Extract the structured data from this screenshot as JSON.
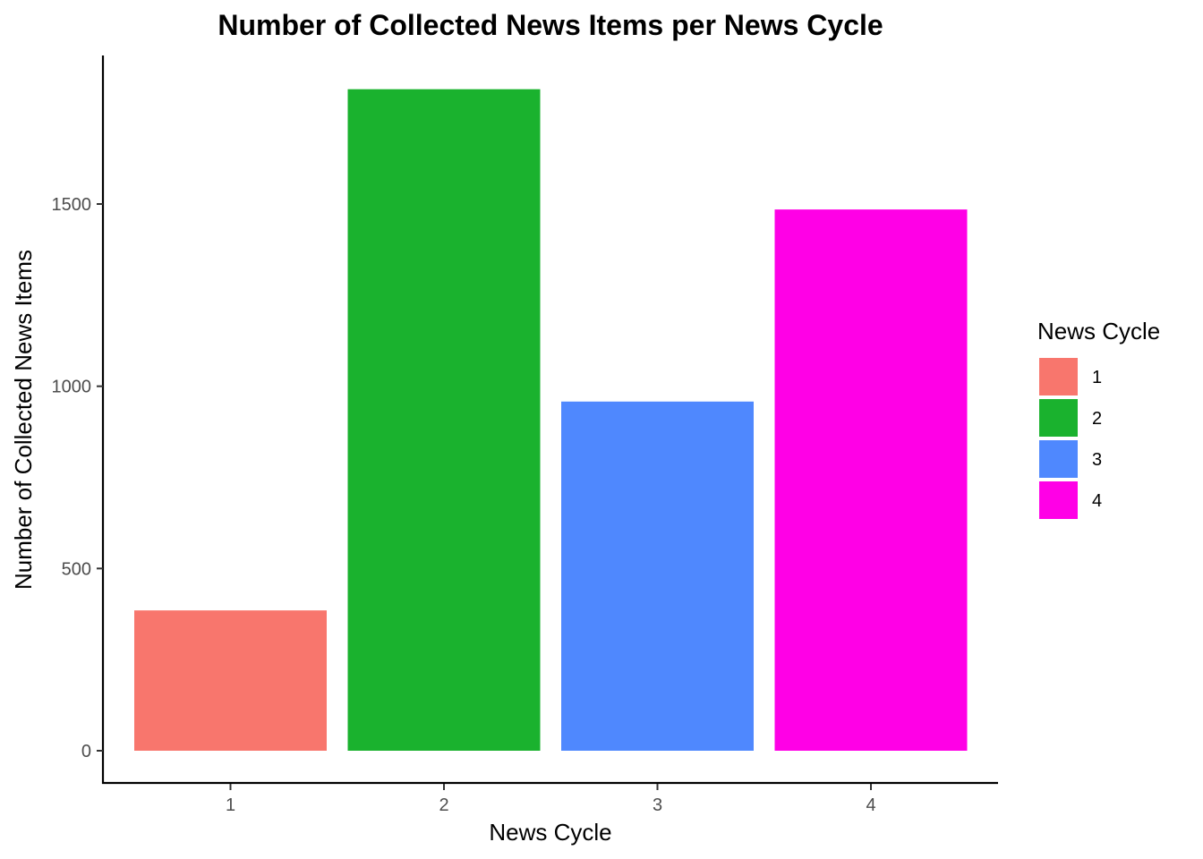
{
  "chart_data": {
    "type": "bar",
    "title": "Number of Collected News Items per News Cycle",
    "xlabel": "News Cycle",
    "ylabel": "Number of Collected News Items",
    "categories": [
      "1",
      "2",
      "3",
      "4"
    ],
    "values": [
      385,
      1815,
      958,
      1485
    ],
    "colors": [
      "#F8766D",
      "#1AB22E",
      "#4F88FE",
      "#FF00E6"
    ],
    "ylim": [
      0,
      1900
    ],
    "yticks": [
      0,
      500,
      1000,
      1500
    ],
    "grid": false,
    "legend": {
      "title": "News Cycle",
      "placement": "right",
      "entries": [
        "1",
        "2",
        "3",
        "4"
      ]
    }
  }
}
